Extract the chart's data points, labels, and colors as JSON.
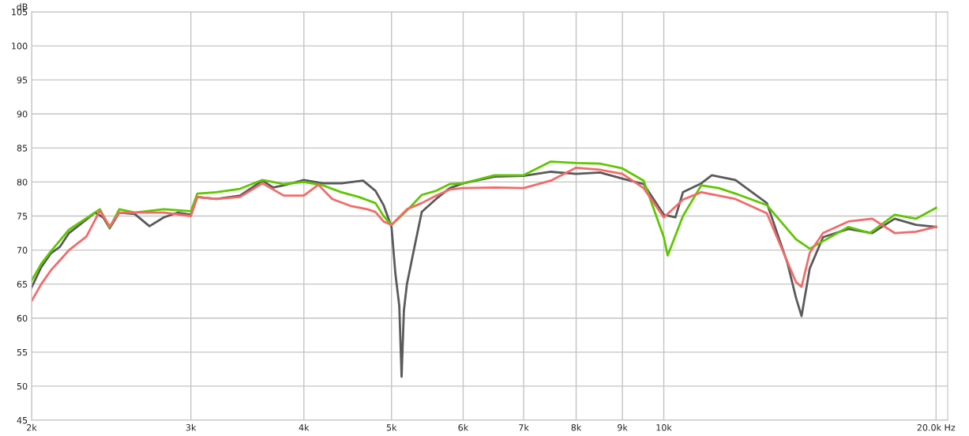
{
  "chart_data": {
    "type": "line",
    "ylabel": "dB",
    "log": "x",
    "grid": true,
    "marker": "none",
    "line_style": "solid",
    "xlim": [
      2000,
      20600
    ],
    "ylim": [
      45,
      105
    ],
    "xticks": [
      {
        "value": 2000,
        "label": "2k"
      },
      {
        "value": 3000,
        "label": "3k"
      },
      {
        "value": 4000,
        "label": "4k"
      },
      {
        "value": 5000,
        "label": "5k"
      },
      {
        "value": 6000,
        "label": "6k"
      },
      {
        "value": 7000,
        "label": "7k"
      },
      {
        "value": 8000,
        "label": "8k"
      },
      {
        "value": 9000,
        "label": "9k"
      },
      {
        "value": 10000,
        "label": "10k"
      },
      {
        "value": 20000,
        "label": "20.0k Hz"
      }
    ],
    "yticks": [
      45,
      50,
      55,
      60,
      65,
      70,
      75,
      80,
      85,
      90,
      95,
      100,
      105
    ],
    "series": [
      {
        "color": "#5a5a5a",
        "x": [
          2000,
          2050,
          2100,
          2150,
          2200,
          2300,
          2350,
          2400,
          2440,
          2500,
          2600,
          2700,
          2800,
          2900,
          3000,
          3050,
          3200,
          3400,
          3600,
          3700,
          3800,
          4000,
          4200,
          4400,
          4650,
          4800,
          4900,
          5000,
          5050,
          5100,
          5130,
          5160,
          5200,
          5300,
          5400,
          5600,
          5800,
          6000,
          6500,
          7000,
          7500,
          8000,
          8500,
          9000,
          9500,
          10000,
          10300,
          10500,
          11000,
          11300,
          12000,
          13000,
          13700,
          14000,
          14200,
          14500,
          15000,
          16000,
          17000,
          18000,
          19000,
          20000
        ],
        "values": [
          64.5,
          67.5,
          69.5,
          70.5,
          72.5,
          74.5,
          75.5,
          74.8,
          73.2,
          75.5,
          75.3,
          73.5,
          74.8,
          75.5,
          75.2,
          77.8,
          77.5,
          78.0,
          80.2,
          79.2,
          79.5,
          80.3,
          79.8,
          79.8,
          80.2,
          78.7,
          76.6,
          73.4,
          66.5,
          61.8,
          51.4,
          61.1,
          65.0,
          70.4,
          75.6,
          77.5,
          79.1,
          79.8,
          80.8,
          80.9,
          81.5,
          81.2,
          81.4,
          80.5,
          79.7,
          75.2,
          74.8,
          78.5,
          79.8,
          81.0,
          80.3,
          76.9,
          68.1,
          63.0,
          60.3,
          67.3,
          71.9,
          73.1,
          72.5,
          74.6,
          73.7,
          73.4
        ]
      },
      {
        "color": "#5fc700",
        "x": [
          2000,
          2050,
          2100,
          2200,
          2300,
          2380,
          2440,
          2500,
          2600,
          2800,
          3000,
          3050,
          3200,
          3400,
          3600,
          3800,
          4000,
          4200,
          4400,
          4600,
          4800,
          4900,
          5000,
          5200,
          5400,
          5600,
          5800,
          6000,
          6500,
          7000,
          7500,
          8000,
          8500,
          9000,
          9500,
          10000,
          10100,
          10500,
          11000,
          11500,
          12000,
          13000,
          14000,
          14500,
          15000,
          16000,
          16900,
          18000,
          19000,
          20000
        ],
        "values": [
          65.5,
          68.0,
          69.8,
          73.0,
          74.7,
          76.0,
          73.3,
          76.0,
          75.5,
          76.0,
          75.7,
          78.3,
          78.5,
          79.0,
          80.3,
          79.7,
          80.0,
          79.5,
          78.5,
          77.8,
          76.9,
          75.0,
          73.7,
          75.8,
          78.1,
          78.7,
          79.7,
          79.8,
          81.0,
          81.0,
          83.0,
          82.8,
          82.7,
          82.0,
          80.2,
          71.9,
          69.2,
          75.0,
          79.5,
          79.1,
          78.3,
          76.6,
          71.6,
          70.2,
          71.3,
          73.4,
          72.5,
          75.2,
          74.6,
          76.2
        ]
      },
      {
        "color": "#f46a6a",
        "x": [
          2000,
          2050,
          2100,
          2150,
          2200,
          2300,
          2380,
          2440,
          2500,
          2600,
          2800,
          3000,
          3050,
          3200,
          3400,
          3600,
          3800,
          4000,
          4150,
          4300,
          4500,
          4700,
          4800,
          4900,
          5000,
          5200,
          5400,
          5600,
          5800,
          6000,
          6500,
          7000,
          7500,
          8000,
          8500,
          9000,
          9500,
          10000,
          10500,
          11000,
          12000,
          13000,
          14000,
          14200,
          14500,
          15000,
          16000,
          17000,
          18000,
          19000,
          20000
        ],
        "values": [
          62.5,
          65.0,
          67.0,
          68.5,
          70.0,
          72.0,
          75.8,
          73.5,
          75.5,
          75.5,
          75.5,
          75.0,
          77.8,
          77.5,
          77.8,
          79.8,
          78.0,
          78.0,
          79.6,
          77.5,
          76.5,
          76.0,
          75.6,
          74.2,
          73.7,
          76.0,
          76.9,
          78.0,
          78.9,
          79.1,
          79.2,
          79.1,
          80.2,
          82.1,
          81.8,
          81.2,
          79.1,
          74.8,
          77.4,
          78.5,
          77.5,
          75.4,
          65.3,
          64.6,
          69.6,
          72.5,
          74.2,
          74.6,
          72.5,
          72.7,
          73.4
        ]
      }
    ]
  }
}
